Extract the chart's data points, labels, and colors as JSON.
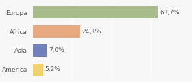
{
  "categories": [
    "Europa",
    "Africa",
    "Asia",
    "America"
  ],
  "values": [
    63.7,
    24.1,
    7.0,
    5.2
  ],
  "labels": [
    "63,7%",
    "24,1%",
    "7,0%",
    "5,2%"
  ],
  "bar_colors": [
    "#a8bb8a",
    "#e8a97e",
    "#7080bc",
    "#f0d070"
  ],
  "background_color": "#f7f7f7",
  "xlim": [
    0,
    80
  ],
  "bar_height": 0.65,
  "label_fontsize": 6.5,
  "category_fontsize": 6.5,
  "grid_color": "#ffffff",
  "grid_xticks": [
    0,
    20,
    40,
    60,
    80
  ]
}
